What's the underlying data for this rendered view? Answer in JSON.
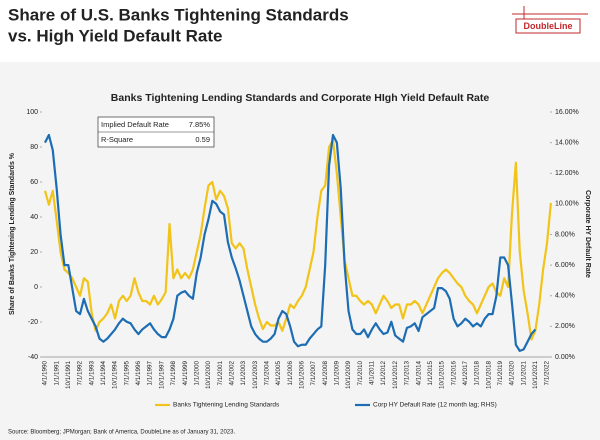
{
  "header": {
    "title": [
      "Share of U.S. Banks Tightening Standards",
      "vs. High Yield Default Rate"
    ],
    "logo": "DoubleLine"
  },
  "chart_data": {
    "type": "line",
    "title": "Banks Tightening Lending Standards and Corporate HIgh Yield Default Rate",
    "ylabel": "Share of Banks Tightening Lending Standards %",
    "y2label": "Corporate HY Default Rate",
    "categories": [
      "4/1/1990",
      null,
      null,
      "1/1/1991",
      null,
      null,
      "10/1/1991",
      null,
      null,
      "7/1/1992",
      null,
      null,
      "4/1/1993",
      null,
      null,
      "1/1/1994",
      null,
      null,
      "10/1/1994",
      null,
      null,
      "7/1/1995",
      null,
      null,
      "4/1/1996",
      null,
      null,
      "1/1/1997",
      null,
      null,
      "10/1/1997",
      null,
      null,
      "7/1/1998",
      null,
      null,
      "4/1/1999",
      null,
      null,
      "1/1/2000",
      null,
      null,
      "10/1/2000",
      null,
      null,
      "7/1/2001",
      null,
      null,
      "4/1/2002",
      null,
      null,
      "1/1/2003",
      null,
      null,
      "10/1/2003",
      null,
      null,
      "7/1/2004",
      null,
      null,
      "4/1/2005",
      null,
      null,
      "1/1/2006",
      null,
      null,
      "10/1/2006",
      null,
      null,
      "7/1/2007",
      null,
      null,
      "4/1/2008",
      null,
      null,
      "1/1/2009",
      null,
      null,
      "10/1/2009",
      null,
      null,
      "7/1/2010",
      null,
      null,
      "4/1/2011",
      null,
      null,
      "1/1/2012",
      null,
      null,
      "10/1/2012",
      null,
      null,
      "7/1/2013",
      null,
      null,
      "4/1/2014",
      null,
      null,
      "1/1/2015",
      null,
      null,
      "10/1/2015",
      null,
      null,
      "7/1/2016",
      null,
      null,
      "4/1/2017",
      null,
      null,
      "1/1/2018",
      null,
      null,
      "10/1/2018",
      null,
      null,
      "7/1/2019",
      null,
      null,
      "4/1/2020",
      null,
      null,
      "1/1/2021",
      null,
      null,
      "10/1/2021",
      null,
      null,
      "7/1/2022",
      null
    ],
    "series": [
      {
        "name": "Banks Tightening Lending Standards",
        "color": "#f2c318",
        "values": [
          55,
          47,
          55,
          38,
          20,
          10,
          8,
          5,
          0,
          -5,
          5,
          3,
          -15,
          -25,
          -20,
          -18,
          -15,
          -10,
          -18,
          -8,
          -5,
          -8,
          -5,
          5,
          -3,
          -8,
          -8,
          -10,
          -5,
          -10,
          -7,
          -3,
          36,
          5,
          10,
          5,
          8,
          5,
          10,
          20,
          30,
          45,
          58,
          60,
          50,
          55,
          52,
          45,
          25,
          22,
          25,
          22,
          10,
          0,
          -10,
          -18,
          -24,
          -20,
          -22,
          -22,
          -20,
          -25,
          -18,
          -10,
          -12,
          -8,
          -5,
          0,
          10,
          20,
          40,
          55,
          58,
          80,
          84,
          65,
          40,
          15,
          5,
          -5,
          -5,
          -8,
          -10,
          -8,
          -10,
          -15,
          -10,
          -5,
          -8,
          -12,
          -10,
          -10,
          -18,
          -10,
          -10,
          -8,
          -10,
          -15,
          -10,
          -5,
          0,
          5,
          8,
          10,
          8,
          5,
          2,
          0,
          -5,
          -8,
          -10,
          -15,
          -10,
          -5,
          0,
          2,
          -3,
          -5,
          5,
          0,
          42,
          71,
          20,
          -2,
          -15,
          -30,
          -25,
          -10,
          10,
          25,
          48
        ]
      },
      {
        "name": "Corp HY Default Rate (12 month lag; RHS)",
        "color": "#1c6db3",
        "axis": "y2",
        "values": [
          14.0,
          14.5,
          13.5,
          11,
          8,
          6,
          6,
          4.5,
          3,
          2.8,
          3.8,
          3,
          2.5,
          2,
          1.2,
          1,
          1.2,
          1.5,
          1.8,
          2.2,
          2.5,
          2.3,
          2.2,
          1.8,
          1.5,
          1.8,
          2.0,
          2.2,
          1.8,
          1.5,
          1.3,
          1.3,
          1.8,
          2.5,
          4.0,
          4.2,
          4.3,
          4.0,
          3.8,
          5.5,
          6.5,
          8.0,
          9.0,
          10.2,
          10.0,
          9.5,
          9.3,
          7.5,
          6.5,
          5.8,
          5.0,
          4.0,
          3.0,
          2.0,
          1.5,
          1.2,
          1.0,
          1.0,
          1.2,
          1.5,
          2.5,
          3.0,
          2.8,
          2.0,
          1.0,
          0.7,
          0.8,
          0.8,
          1.2,
          1.5,
          1.8,
          2.0,
          6.0,
          12.5,
          14.5,
          14.0,
          11.0,
          6.0,
          3.0,
          1.8,
          1.5,
          1.5,
          1.8,
          1.3,
          1.8,
          2.2,
          1.8,
          1.5,
          1.6,
          2.3,
          1.4,
          1.2,
          1.0,
          1.9,
          2.0,
          2.2,
          1.7,
          2.6,
          2.8,
          3.0,
          3.2,
          4.5,
          4.5,
          4.3,
          3.8,
          2.5,
          2.0,
          2.2,
          2.5,
          2.3,
          2.0,
          2.2,
          2.0,
          2.5,
          2.8,
          2.8,
          4.0,
          6.5,
          6.5,
          6.0,
          3.5,
          0.8,
          0.4,
          0.5,
          1.0,
          1.5,
          1.8,
          null,
          null,
          null,
          null
        ]
      }
    ],
    "ylim": [
      -40,
      100
    ],
    "yticks": [
      -40,
      -20,
      0,
      20,
      40,
      60,
      80,
      100
    ],
    "y2lim": [
      0,
      16
    ],
    "y2ticks": [
      {
        "value": 0,
        "label": "0.00%"
      },
      {
        "value": 2,
        "label": "2.00%"
      },
      {
        "value": 4,
        "label": "4.00%"
      },
      {
        "value": 6,
        "label": "6.00%"
      },
      {
        "value": 8,
        "label": "8.00%"
      },
      {
        "value": 10,
        "label": "10.00%"
      },
      {
        "value": 12,
        "label": "12.00%"
      },
      {
        "value": 14,
        "label": "14.00%"
      },
      {
        "value": 16,
        "label": "16.00%"
      }
    ],
    "stats": [
      [
        "Implied Default Rate",
        "7.85%"
      ],
      [
        "R-Square",
        "0.59"
      ]
    ],
    "legend": "bottom"
  },
  "source": "Source: Bloomberg; JPMorgan; Bank of America, DoubleLine as of January 31, 2023."
}
